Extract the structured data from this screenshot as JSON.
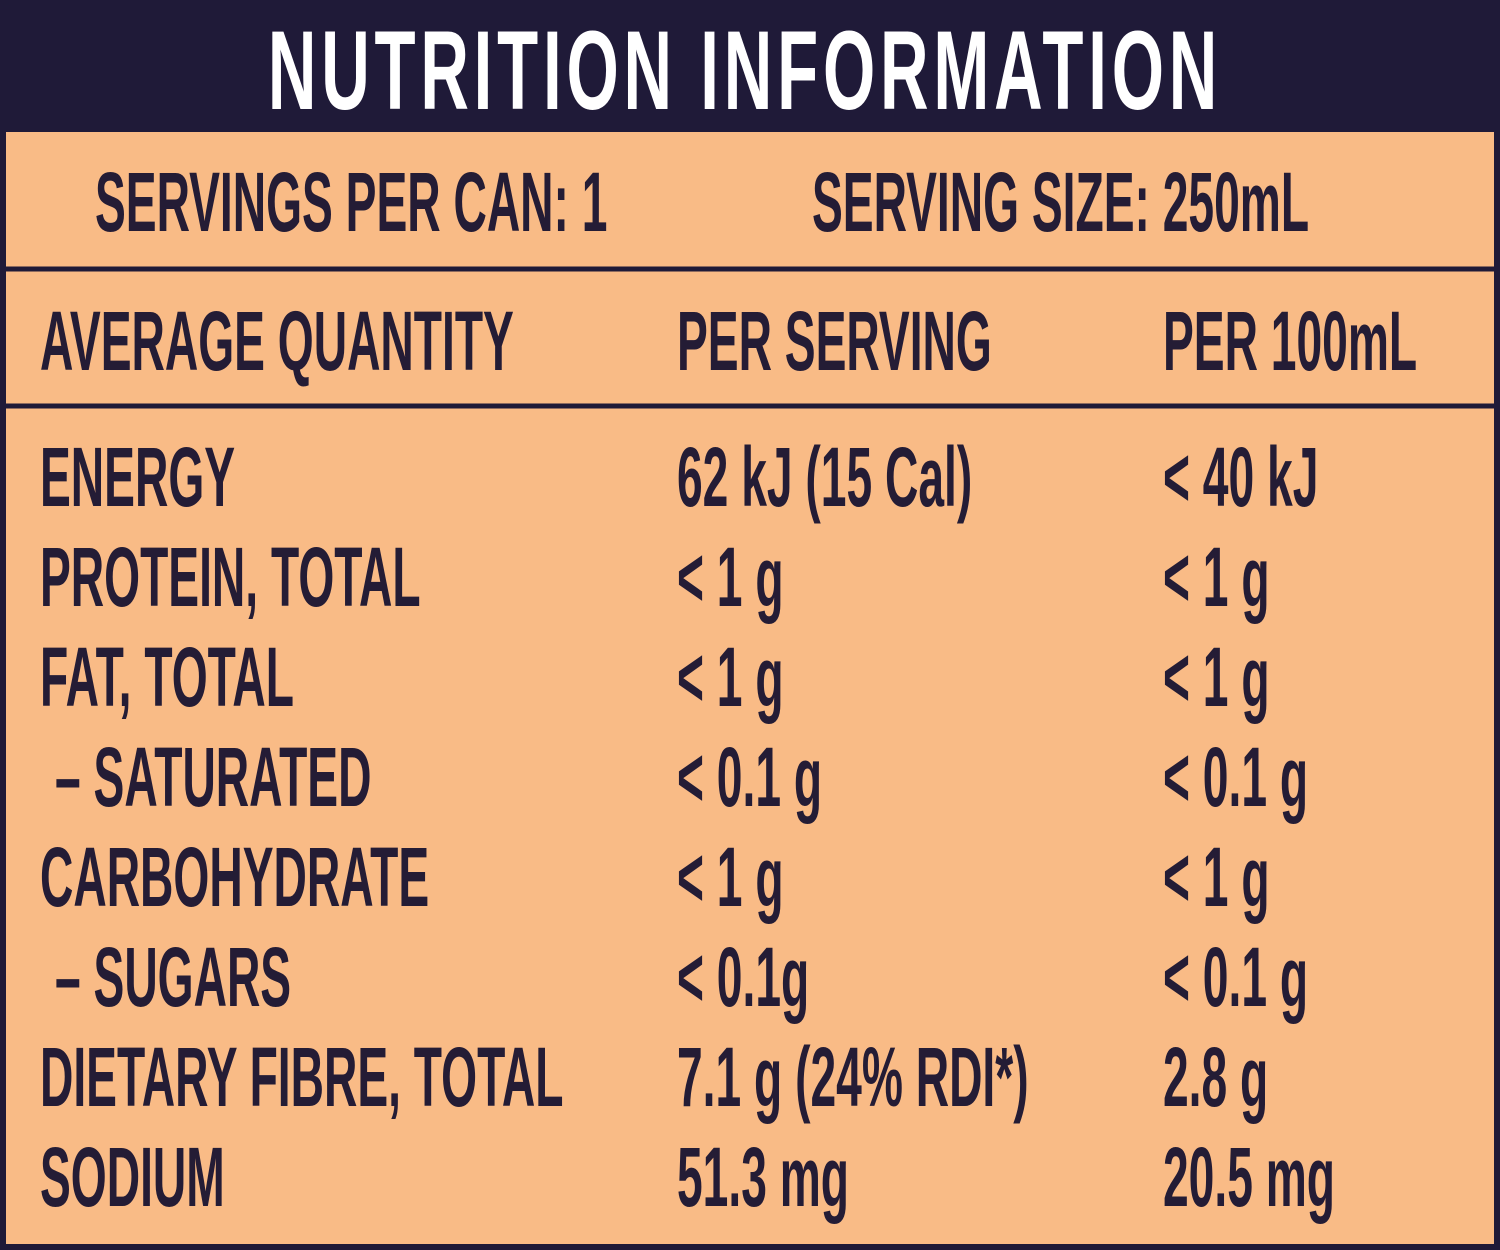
{
  "header": {
    "title": "NUTRITION INFORMATION"
  },
  "servings": {
    "per_can": "SERVINGS PER CAN: 1",
    "size": "SERVING SIZE: 250mL"
  },
  "table": {
    "columns": [
      "AVERAGE QUANTITY",
      "PER SERVING",
      "PER 100mL"
    ],
    "rows": [
      [
        "ENERGY",
        "62 kJ (15 Cal)",
        "< 40 kJ"
      ],
      [
        "PROTEIN, TOTAL",
        "< 1 g",
        "< 1 g"
      ],
      [
        "FAT, TOTAL",
        "< 1 g",
        "< 1 g"
      ],
      [
        "– SATURATED",
        "< 0.1 g",
        "< 0.1 g"
      ],
      [
        "CARBOHYDRATE",
        "< 1 g",
        "< 1 g"
      ],
      [
        "– SUGARS",
        "< 0.1g",
        "< 0.1 g"
      ],
      [
        "DIETARY FIBRE, TOTAL",
        "7.1 g (24% RDI*)",
        "2.8 g"
      ],
      [
        "SODIUM",
        "51.3 mg",
        "20.5 mg"
      ]
    ]
  }
}
